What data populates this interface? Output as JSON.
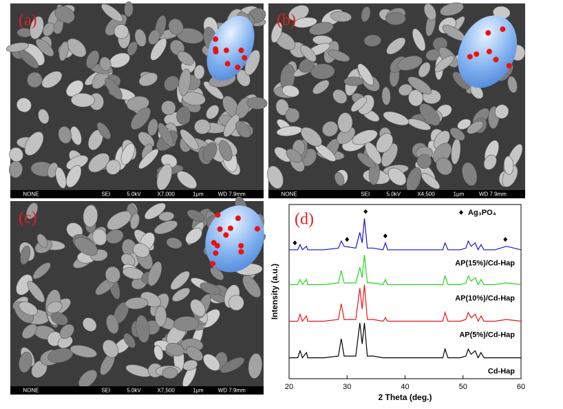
{
  "panels": [
    {
      "label": "(a)",
      "bar": [
        "NONE",
        "SEI",
        "5.0kV",
        "X7,000",
        "1μm",
        "WD 7.9mm"
      ]
    },
    {
      "label": "(b)",
      "bar": [
        "NONE",
        "SEI",
        "5.0kV",
        "X4,500",
        "1μm",
        "WD 7.9mm"
      ]
    },
    {
      "label": "(c)",
      "bar": [
        "NONE",
        "SEI",
        "5.0kV",
        "X7,500",
        "1μm",
        "WD 7.9mm"
      ]
    }
  ],
  "chart_data": {
    "type": "line",
    "panel_label": "(d)",
    "x_label": "2 Theta (deg.)",
    "y_label": "Intensity (a.u.)",
    "xlim": [
      20,
      60
    ],
    "xticks": [
      20,
      30,
      40,
      50,
      60
    ],
    "ylim": [
      0,
      100
    ],
    "x": [
      20,
      21.5,
      21.9,
      22.3,
      23,
      23.2,
      23.5,
      25.5,
      26,
      28.5,
      29,
      29.5,
      31.5,
      32.2,
      32.6,
      33,
      33.5,
      34.5,
      36.2,
      36.6,
      37,
      40,
      46.5,
      46.9,
      47.4,
      48.8,
      49.5,
      50.5,
      50.9,
      51.4,
      52.1,
      52.6,
      53.1,
      53.6,
      55.5,
      57.5,
      60
    ],
    "series": [
      {
        "name": "Cd-Hap",
        "color": "#000000",
        "values": [
          12,
          12,
          16,
          12,
          15,
          12,
          12,
          12,
          12,
          13,
          23,
          13,
          13,
          32,
          20,
          32,
          13,
          13,
          12,
          12,
          12,
          12,
          12,
          17,
          12,
          12,
          12,
          13,
          17,
          14,
          16,
          12,
          15,
          12,
          12,
          12,
          12
        ]
      },
      {
        "name": "AP(5%)/Cd-Hap",
        "color": "#e8141a",
        "values": [
          33,
          33,
          37,
          33,
          36,
          33,
          33,
          33,
          33,
          34,
          43,
          34,
          34,
          52,
          40,
          54,
          34,
          34,
          33,
          35,
          33,
          33,
          33,
          38,
          33,
          33,
          33,
          34,
          38,
          35,
          37,
          33,
          36,
          33,
          33,
          34,
          33
        ]
      },
      {
        "name": "AP(10%)/Cd-Hap",
        "color": "#22d41e",
        "values": [
          54,
          54,
          57,
          54,
          57,
          54,
          54,
          54,
          54,
          55,
          62,
          55,
          55,
          64,
          58,
          71,
          55,
          55,
          54,
          57,
          54,
          54,
          54,
          59,
          54,
          54,
          54,
          55,
          59,
          56,
          58,
          54,
          57,
          54,
          54,
          55,
          54
        ]
      },
      {
        "name": "AP(15%)/Cd-Hap",
        "color": "#1414c8",
        "values": [
          74,
          74,
          77,
          74,
          76,
          74,
          74,
          74,
          74,
          75,
          79,
          76,
          75,
          84,
          78,
          92,
          75,
          75,
          74,
          78,
          74,
          74,
          74,
          78,
          74,
          74,
          74,
          75,
          79,
          76,
          78,
          74,
          77,
          74,
          74,
          76,
          74
        ]
      }
    ],
    "marker_name": "Ag₃PO₄",
    "marker_x": [
      21,
      30,
      33.2,
      36.6,
      57.3
    ]
  }
}
